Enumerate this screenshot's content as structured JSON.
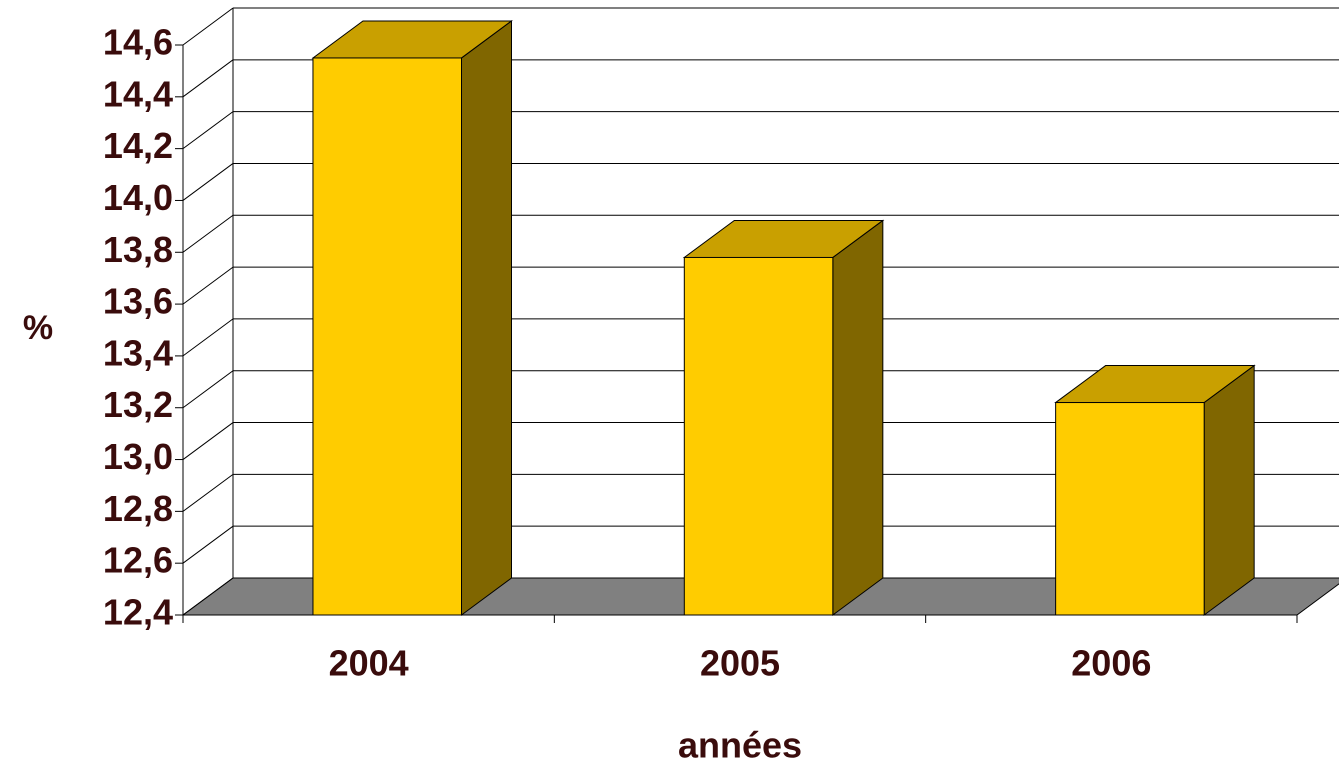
{
  "chart_data": {
    "type": "bar3d",
    "categories": [
      "2004",
      "2005",
      "2006"
    ],
    "values": [
      14.55,
      13.78,
      13.22
    ],
    "color": "#ffcc00",
    "ylim": [
      12.4,
      14.6
    ],
    "yticks": [
      {
        "value": 12.4,
        "label": "12,4"
      },
      {
        "value": 12.6,
        "label": "12,6"
      },
      {
        "value": 12.8,
        "label": "12,8"
      },
      {
        "value": 13.0,
        "label": "13,0"
      },
      {
        "value": 13.2,
        "label": "13,2"
      },
      {
        "value": 13.4,
        "label": "13,4"
      },
      {
        "value": 13.6,
        "label": "13,6"
      },
      {
        "value": 13.8,
        "label": "13,8"
      },
      {
        "value": 14.0,
        "label": "14,0"
      },
      {
        "value": 14.2,
        "label": "14,2"
      },
      {
        "value": 14.4,
        "label": "14,4"
      },
      {
        "value": 14.6,
        "label": "14,6"
      }
    ],
    "grid": true,
    "y_label": "%",
    "x_label": "années"
  }
}
